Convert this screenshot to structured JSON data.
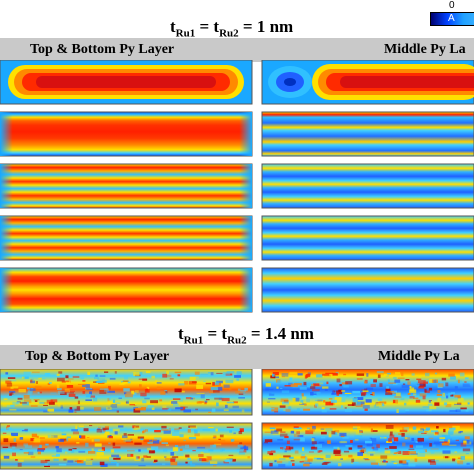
{
  "colorbar": {
    "tick": "0",
    "text": "A"
  },
  "sections": [
    {
      "title_base": "t",
      "title_sub1": "Ru1",
      "title_eq": " = t",
      "title_sub2": "Ru2",
      "title_value": " = 1 nm",
      "left_label": "Top & Bottom Py Layer",
      "right_label": "Middle Py La"
    },
    {
      "title_base": "t",
      "title_sub1": "Ru1",
      "title_eq": " = t",
      "title_sub2": "Ru2",
      "title_value": " = 1.4 nm",
      "left_label": "Top & Bottom Py Layer",
      "right_label": "Middle Py La"
    }
  ]
}
